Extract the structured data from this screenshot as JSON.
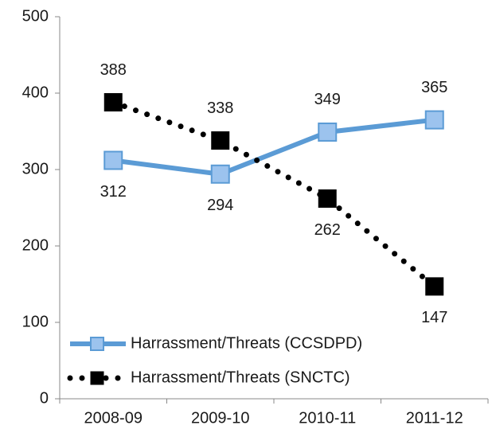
{
  "chart_data": {
    "type": "line",
    "categories": [
      "2008-09",
      "2009-10",
      "2010-11",
      "2011-12"
    ],
    "series": [
      {
        "name": "Harrassment/Threats (CCSDPD)",
        "color": "#5b9bd5",
        "marker": "square",
        "line_style": "solid",
        "values": [
          312,
          294,
          349,
          365
        ]
      },
      {
        "name": "Harrassment/Threats (SNCTC)",
        "color": "#000000",
        "marker": "square",
        "line_style": "dotted",
        "values": [
          388,
          338,
          262,
          147
        ]
      }
    ],
    "ylim": [
      0,
      500
    ],
    "yticks": [
      0,
      100,
      200,
      300,
      400,
      500
    ],
    "grid": false,
    "legend": "lower left"
  }
}
